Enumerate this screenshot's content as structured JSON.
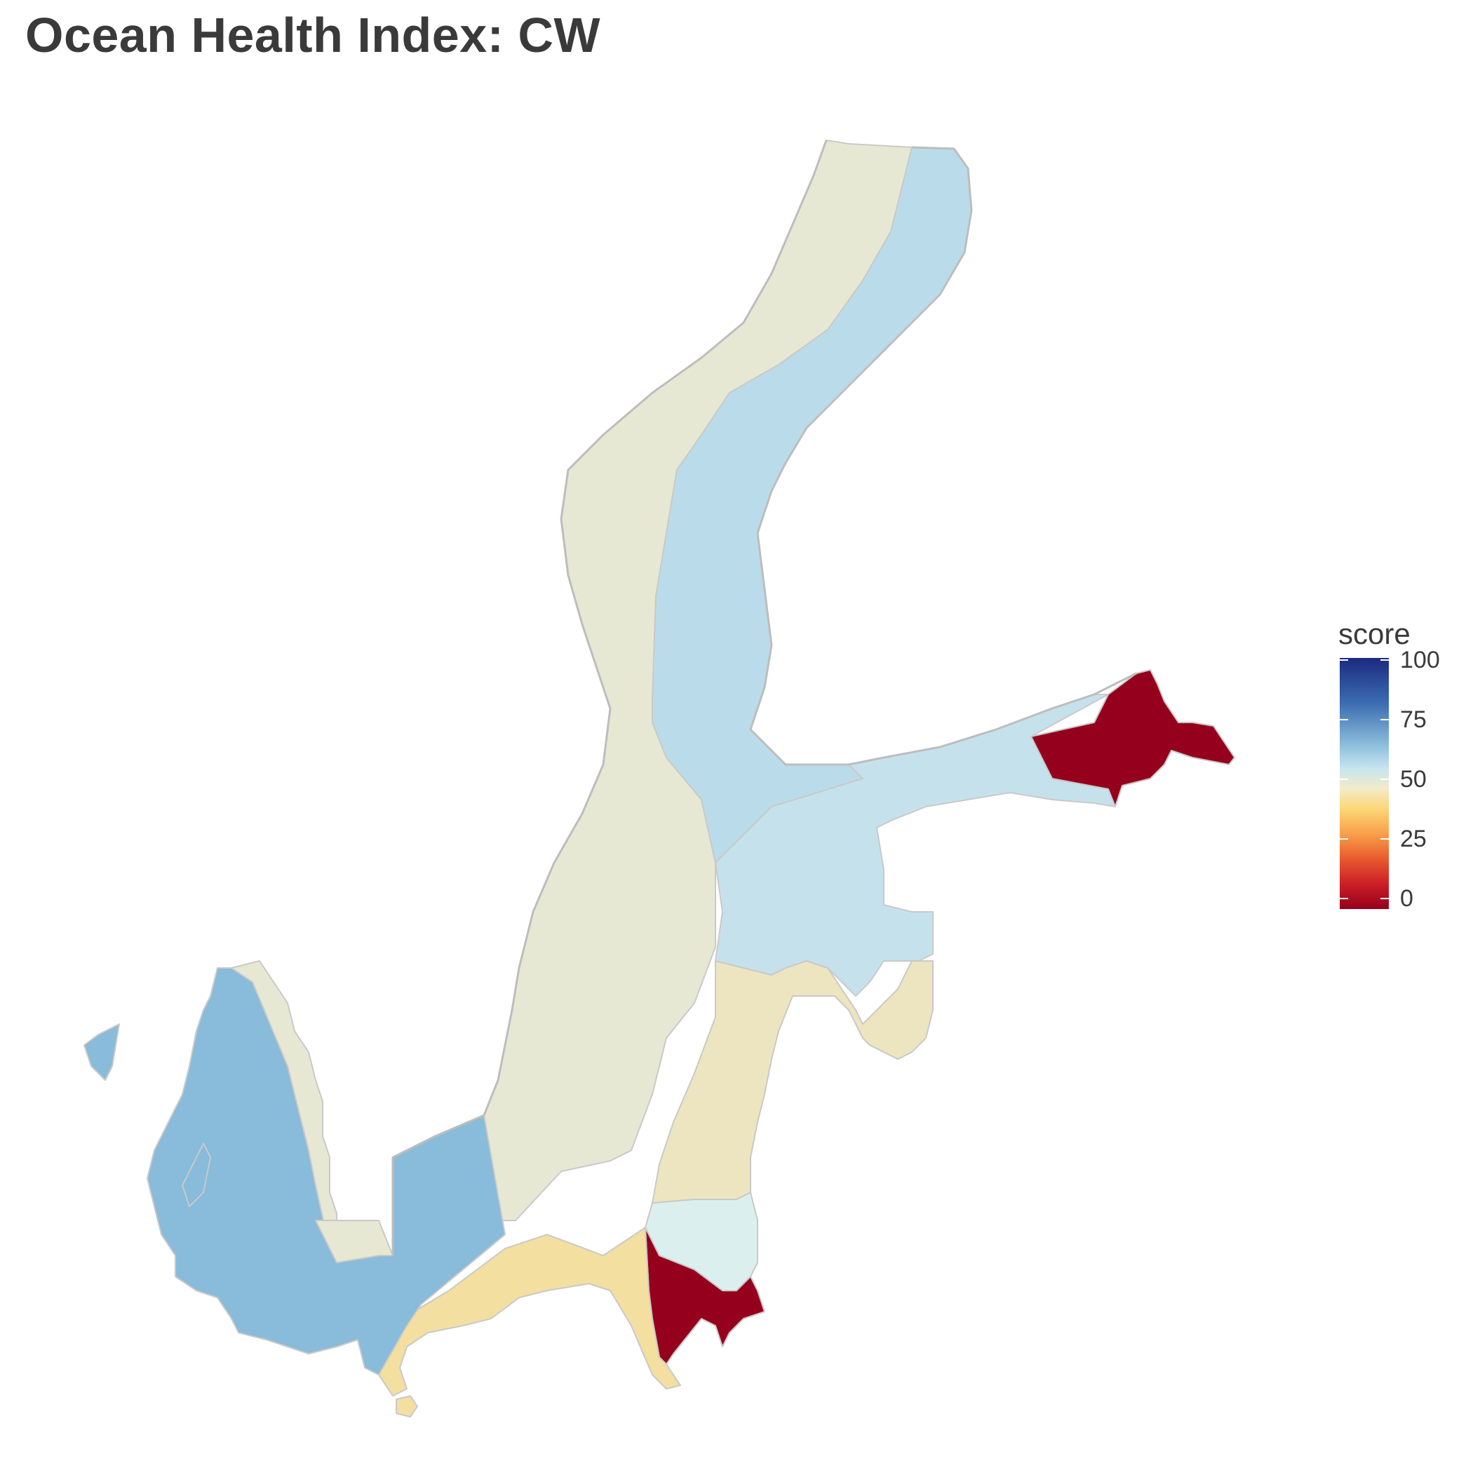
{
  "title": "Ocean Health Index: CW",
  "legend": {
    "title": "score",
    "ticks": [
      "100",
      "75",
      "50",
      "25",
      "0"
    ],
    "colors": {
      "score_0": "#95001c",
      "score_50": "#f3ebc9",
      "score_75": "#89bbda",
      "score_100": "#1b2a80"
    }
  },
  "map": {
    "colors": {
      "sweden_coast": "#e7e8d3",
      "finland_coast": "#badcea",
      "gulf_of_finland": "#c5e2ec",
      "gulf_of_finland_east": "#95001c",
      "estonia_latvia": "#ede5bf",
      "gotland_east": "#dcefef",
      "lithuania_kaliningrad": "#95001c",
      "poland": "#f3dfa0",
      "denmark_kattegat": "#89bbda",
      "sweden_west": "#e7e8d3"
    }
  }
}
